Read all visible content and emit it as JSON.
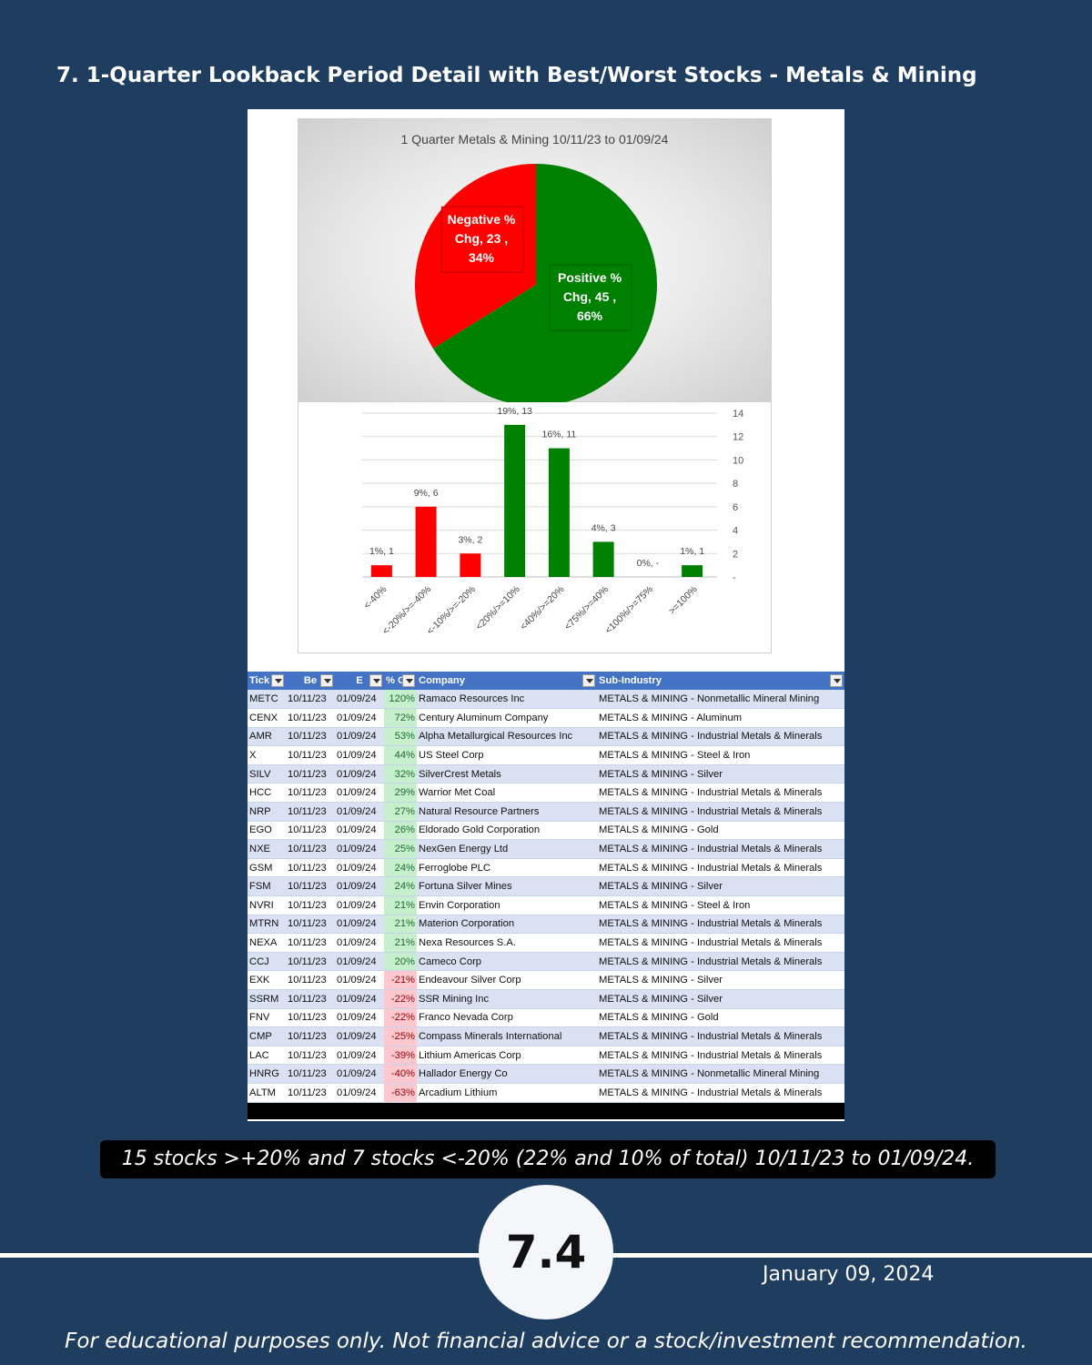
{
  "heading": "7. 1-Quarter Lookback Period Detail with Best/Worst Stocks - Metals & Mining",
  "colors": {
    "background": "#1e3d5f",
    "negative": "#ff0000",
    "positive": "#008000",
    "header": "#4472c4"
  },
  "chart_data": [
    {
      "type": "pie",
      "title": "1 Quarter Metals & Mining 10/11/23 to 01/09/24",
      "slices": [
        {
          "label_lines": [
            "Negative %",
            "Chg,  23 ,",
            "34%"
          ],
          "value": 23,
          "percent": 34,
          "color": "#ff0000"
        },
        {
          "label_lines": [
            "Positive %",
            "Chg,  45 ,",
            "66%"
          ],
          "value": 45,
          "percent": 66,
          "color": "#008000"
        }
      ]
    },
    {
      "type": "bar",
      "categories": [
        "<-40%",
        "<-20%/>=-40%",
        "<-10%/>=-20%",
        "<20%/>=10%",
        "<40%/>=20%",
        "<75%/>=40%",
        "<100%/>=75%",
        ">=100%"
      ],
      "values": [
        1,
        6,
        2,
        13,
        11,
        3,
        0,
        1
      ],
      "data_labels": [
        "1%,  1",
        "9%,  6",
        "3%,  2",
        "19%,  13",
        "16%,  11",
        "4%,  3",
        "0%,  -",
        "1%,  1"
      ],
      "colors": [
        "#ff0000",
        "#ff0000",
        "#ff0000",
        "#008000",
        "#008000",
        "#008000",
        "#008000",
        "#008000"
      ],
      "ylim": [
        0,
        14
      ],
      "yticks": [
        "-",
        "2",
        "4",
        "6",
        "8",
        "10",
        "12",
        "14"
      ],
      "grid": true,
      "y_axis_side": "right"
    }
  ],
  "table": {
    "headers": [
      "Tick",
      "Be",
      "E",
      "% C",
      "Company",
      "Sub-Industry"
    ],
    "rows": [
      [
        "METC",
        "10/11/23",
        "01/09/24",
        "120%",
        "Ramaco Resources Inc",
        "METALS & MINING - Nonmetallic Mineral Mining"
      ],
      [
        "CENX",
        "10/11/23",
        "01/09/24",
        "72%",
        "Century Aluminum Company",
        "METALS & MINING - Aluminum"
      ],
      [
        "AMR",
        "10/11/23",
        "01/09/24",
        "53%",
        "Alpha Metallurgical Resources Inc",
        "METALS & MINING - Industrial Metals & Minerals"
      ],
      [
        "X",
        "10/11/23",
        "01/09/24",
        "44%",
        "US Steel Corp",
        "METALS & MINING - Steel & Iron"
      ],
      [
        "SILV",
        "10/11/23",
        "01/09/24",
        "32%",
        "SilverCrest Metals",
        "METALS & MINING - Silver"
      ],
      [
        "HCC",
        "10/11/23",
        "01/09/24",
        "29%",
        "Warrior Met Coal",
        "METALS & MINING - Industrial Metals & Minerals"
      ],
      [
        "NRP",
        "10/11/23",
        "01/09/24",
        "27%",
        "Natural Resource Partners",
        "METALS & MINING - Industrial Metals & Minerals"
      ],
      [
        "EGO",
        "10/11/23",
        "01/09/24",
        "26%",
        "Eldorado Gold Corporation",
        "METALS & MINING - Gold"
      ],
      [
        "NXE",
        "10/11/23",
        "01/09/24",
        "25%",
        "NexGen Energy Ltd",
        "METALS & MINING - Industrial Metals & Minerals"
      ],
      [
        "GSM",
        "10/11/23",
        "01/09/24",
        "24%",
        "Ferroglobe PLC",
        "METALS & MINING - Industrial Metals & Minerals"
      ],
      [
        "FSM",
        "10/11/23",
        "01/09/24",
        "24%",
        "Fortuna Silver Mines",
        "METALS & MINING - Silver"
      ],
      [
        "NVRI",
        "10/11/23",
        "01/09/24",
        "21%",
        "Envin Corporation",
        "METALS & MINING - Steel & Iron"
      ],
      [
        "MTRN",
        "10/11/23",
        "01/09/24",
        "21%",
        "Materion Corporation",
        "METALS & MINING - Industrial Metals & Minerals"
      ],
      [
        "NEXA",
        "10/11/23",
        "01/09/24",
        "21%",
        "Nexa Resources S.A.",
        "METALS & MINING - Industrial Metals & Minerals"
      ],
      [
        "CCJ",
        "10/11/23",
        "01/09/24",
        "20%",
        "Cameco Corp",
        "METALS & MINING - Industrial Metals & Minerals"
      ],
      [
        "EXK",
        "10/11/23",
        "01/09/24",
        "-21%",
        "Endeavour Silver Corp",
        "METALS & MINING - Silver"
      ],
      [
        "SSRM",
        "10/11/23",
        "01/09/24",
        "-22%",
        "SSR Mining Inc",
        "METALS & MINING - Silver"
      ],
      [
        "FNV",
        "10/11/23",
        "01/09/24",
        "-22%",
        "Franco Nevada Corp",
        "METALS & MINING - Gold"
      ],
      [
        "CMP",
        "10/11/23",
        "01/09/24",
        "-25%",
        "Compass Minerals International",
        "METALS & MINING - Industrial Metals & Minerals"
      ],
      [
        "LAC",
        "10/11/23",
        "01/09/24",
        "-39%",
        "Lithium Americas Corp",
        "METALS & MINING - Industrial Metals & Minerals"
      ],
      [
        "HNRG",
        "10/11/23",
        "01/09/24",
        "-40%",
        "Hallador Energy Co",
        "METALS & MINING - Nonmetallic Mineral Mining"
      ],
      [
        "ALTM",
        "10/11/23",
        "01/09/24",
        "-63%",
        "Arcadium Lithium",
        "METALS & MINING - Industrial Metals & Minerals"
      ]
    ]
  },
  "summary": "15 stocks >+20% and 7 stocks <-20% (22% and 10% of total) 10/11/23 to 01/09/24.",
  "page_number": "7.4",
  "date": "January 09, 2024",
  "disclaimer": "For educational purposes only. Not financial advice or a stock/investment recommendation."
}
